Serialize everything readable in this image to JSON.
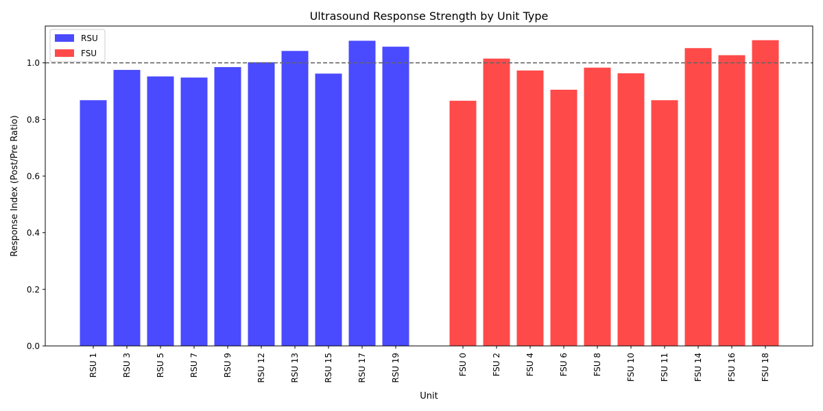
{
  "chart_data": {
    "type": "bar",
    "title": "Ultrasound Response Strength by Unit Type",
    "xlabel": "Unit",
    "ylabel": "Response Index (Post/Pre Ratio)",
    "ylim": [
      0,
      1.13
    ],
    "yticks": [
      "0.0",
      "0.2",
      "0.4",
      "0.6",
      "0.8",
      "1.0"
    ],
    "reference_line": {
      "y": 1.0,
      "style": "dashed",
      "color": "#666666"
    },
    "legend": {
      "placement": "top-left"
    },
    "grid": false,
    "series": [
      {
        "name": "RSU",
        "color": "#4a4aff",
        "categories": [
          "RSU 1",
          "RSU 3",
          "RSU 5",
          "RSU 7",
          "RSU 9",
          "RSU 12",
          "RSU 13",
          "RSU 15",
          "RSU 17",
          "RSU 19"
        ],
        "values": [
          0.868,
          0.975,
          0.952,
          0.948,
          0.985,
          1.002,
          1.042,
          0.962,
          1.078,
          1.057
        ]
      },
      {
        "name": "FSU",
        "color": "#ff4a4a",
        "categories": [
          "FSU 0",
          "FSU 2",
          "FSU 4",
          "FSU 6",
          "FSU 8",
          "FSU 10",
          "FSU 11",
          "FSU 14",
          "FSU 16",
          "FSU 18"
        ],
        "values": [
          0.866,
          1.015,
          0.973,
          0.905,
          0.983,
          0.963,
          0.868,
          1.052,
          1.027,
          1.08
        ]
      }
    ]
  }
}
